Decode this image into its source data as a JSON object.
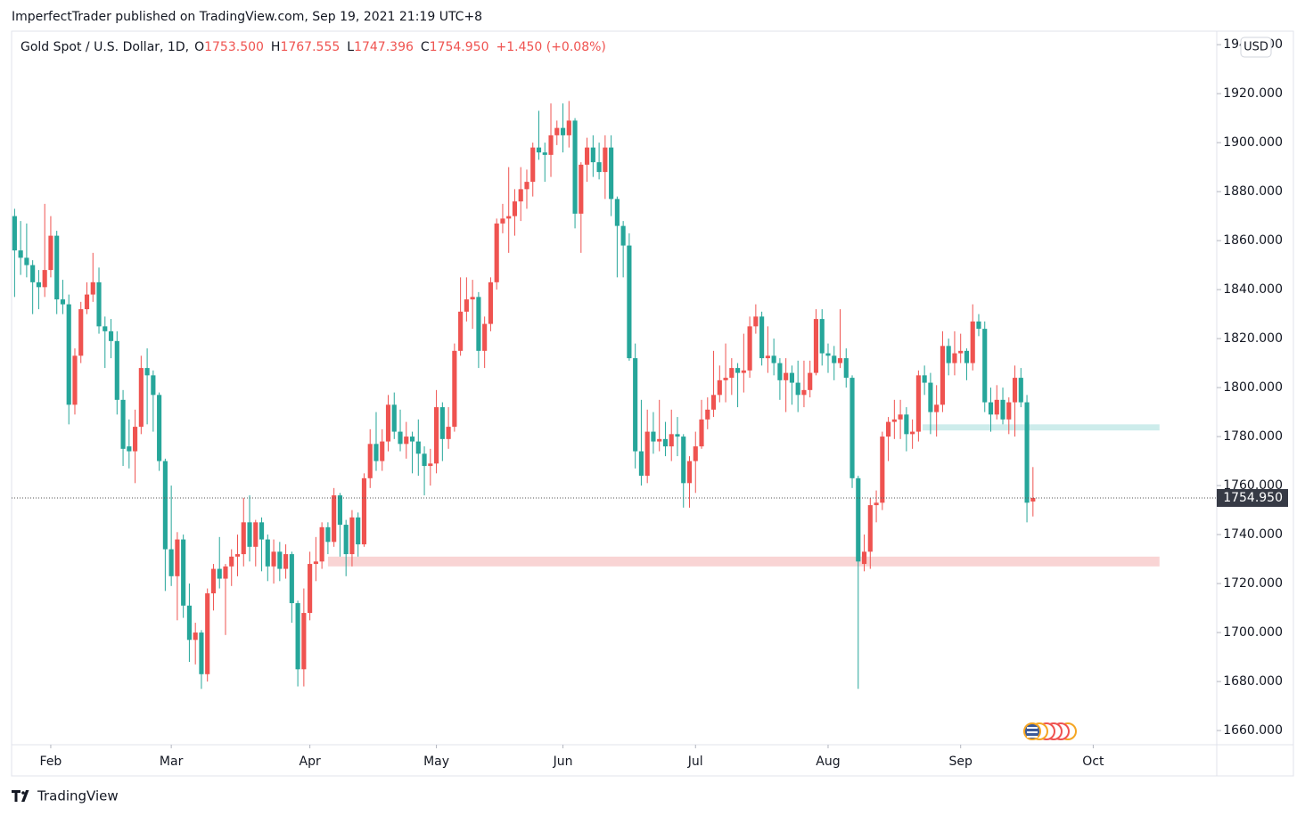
{
  "header": "ImperfectTrader published on TradingView.com, Sep 19, 2021 21:19 UTC+8",
  "footer": "TradingView",
  "chart_data": {
    "type": "candlestick",
    "legend": {
      "symbol": "Gold Spot / U.S. Dollar, 1D,",
      "ohlc": [
        {
          "key": "O",
          "value": "1753.500"
        },
        {
          "key": "H",
          "value": "1767.555"
        },
        {
          "key": "L",
          "value": "1747.396"
        },
        {
          "key": "C",
          "value": "1754.950"
        }
      ],
      "change": "+1.450 (+0.08%)"
    },
    "currency": "USD",
    "up_color": "#ef5350",
    "down_color": "#26a69a",
    "open": [
      1870,
      1856,
      1853,
      1850,
      1843,
      1841,
      1848,
      1862,
      1836,
      1834,
      1793,
      1813,
      1832,
      1838,
      1843,
      1825,
      1823,
      1819,
      1795,
      1776,
      1774,
      1784,
      1808,
      1805,
      1797,
      1770,
      1734,
      1723,
      1738,
      1711,
      1697,
      1700,
      1683,
      1716,
      1726,
      1722,
      1727,
      1731,
      1732,
      1745,
      1735,
      1745,
      1738,
      1727,
      1733,
      1726,
      1732,
      1712,
      1685,
      1708,
      1728,
      1729,
      1743,
      1737,
      1756,
      1744,
      1732,
      1747,
      1736,
      1763,
      1777,
      1770,
      1778,
      1793,
      1782,
      1777,
      1780,
      1778,
      1773,
      1768,
      1769,
      1792,
      1779,
      1784,
      1815,
      1831,
      1836,
      1837,
      1815,
      1826,
      1843,
      1867,
      1869,
      1870,
      1876,
      1881,
      1884,
      1898,
      1896,
      1895,
      1903,
      1906,
      1903,
      1909,
      1871,
      1891,
      1898,
      1892,
      1888,
      1898,
      1877,
      1866,
      1858,
      1812,
      1774,
      1764,
      1782,
      1778,
      1779,
      1776,
      1781,
      1780,
      1761,
      1770,
      1776,
      1787,
      1791,
      1797,
      1803,
      1804,
      1808,
      1806,
      1807,
      1825,
      1829,
      1812,
      1813,
      1810,
      1803,
      1806,
      1802,
      1797,
      1799,
      1806,
      1828,
      1814,
      1813,
      1810,
      1812,
      1804,
      1763,
      1728,
      1733,
      1752,
      1753,
      1780,
      1786,
      1787,
      1789,
      1781,
      1782,
      1805,
      1802,
      1790,
      1793,
      1817,
      1810,
      1814,
      1815,
      1810,
      1827,
      1824,
      1794,
      1789,
      1795,
      1787,
      1794,
      1804,
      1794,
      1753.5
    ],
    "high": [
      1873,
      1868,
      1867,
      1852,
      1848,
      1875,
      1870,
      1864,
      1844,
      1838,
      1816,
      1835,
      1843,
      1855,
      1849,
      1829,
      1828,
      1823,
      1799,
      1787,
      1791,
      1813,
      1816,
      1807,
      1798,
      1771,
      1760,
      1741,
      1740,
      1720,
      1704,
      1701,
      1718,
      1728,
      1739,
      1728,
      1734,
      1740,
      1755,
      1756,
      1746,
      1747,
      1740,
      1738,
      1737,
      1736,
      1733,
      1713,
      1718,
      1733,
      1739,
      1745,
      1745,
      1759,
      1757,
      1746,
      1750,
      1749,
      1765,
      1783,
      1790,
      1783,
      1797,
      1798,
      1791,
      1786,
      1782,
      1787,
      1776,
      1775,
      1799,
      1794,
      1792,
      1818,
      1845,
      1845,
      1844,
      1839,
      1829,
      1845,
      1869,
      1875,
      1890,
      1881,
      1890,
      1889,
      1900,
      1913,
      1900,
      1916,
      1909,
      1916,
      1917,
      1910,
      1892,
      1902,
      1903,
      1900,
      1903,
      1903,
      1878,
      1868,
      1863,
      1818,
      1795,
      1791,
      1790,
      1795,
      1786,
      1791,
      1788,
      1781,
      1772,
      1782,
      1795,
      1796,
      1815,
      1809,
      1818,
      1812,
      1810,
      1822,
      1829,
      1834,
      1831,
      1825,
      1820,
      1812,
      1812,
      1809,
      1811,
      1811,
      1811,
      1832,
      1832,
      1818,
      1817,
      1832,
      1816,
      1805,
      1764,
      1740,
      1755,
      1758,
      1782,
      1788,
      1795,
      1795,
      1792,
      1787,
      1807,
      1809,
      1806,
      1801,
      1823,
      1820,
      1823,
      1822,
      1816,
      1834,
      1830,
      1827,
      1800,
      1801,
      1800,
      1796,
      1809,
      1808,
      1797,
      1767.555
    ],
    "low": [
      1837,
      1846,
      1845,
      1830,
      1832,
      1837,
      1845,
      1830,
      1830,
      1785,
      1789,
      1810,
      1830,
      1835,
      1822,
      1808,
      1812,
      1789,
      1768,
      1767,
      1761,
      1781,
      1785,
      1782,
      1766,
      1717,
      1719,
      1705,
      1706,
      1688,
      1687,
      1677,
      1680,
      1709,
      1718,
      1699,
      1719,
      1723,
      1727,
      1729,
      1727,
      1725,
      1721,
      1720,
      1721,
      1722,
      1704,
      1678,
      1678,
      1705,
      1721,
      1726,
      1732,
      1735,
      1731,
      1723,
      1727,
      1731,
      1735,
      1759,
      1766,
      1766,
      1774,
      1779,
      1774,
      1771,
      1765,
      1764,
      1756,
      1760,
      1765,
      1770,
      1775,
      1782,
      1813,
      1827,
      1824,
      1808,
      1808,
      1823,
      1840,
      1863,
      1855,
      1862,
      1868,
      1873,
      1878,
      1893,
      1884,
      1886,
      1899,
      1896,
      1898,
      1865,
      1855,
      1884,
      1886,
      1885,
      1877,
      1870,
      1845,
      1845,
      1811,
      1767,
      1760,
      1761,
      1773,
      1774,
      1772,
      1770,
      1772,
      1751,
      1751,
      1757,
      1775,
      1783,
      1788,
      1794,
      1794,
      1797,
      1792,
      1798,
      1804,
      1822,
      1809,
      1806,
      1805,
      1795,
      1790,
      1793,
      1790,
      1792,
      1796,
      1805,
      1809,
      1806,
      1803,
      1808,
      1800,
      1759,
      1677,
      1725,
      1726,
      1745,
      1750,
      1770,
      1779,
      1779,
      1774,
      1775,
      1778,
      1797,
      1781,
      1780,
      1790,
      1805,
      1805,
      1810,
      1803,
      1807,
      1821,
      1790,
      1782,
      1787,
      1785,
      1781,
      1780,
      1792,
      1745,
      1747.396
    ],
    "close": [
      1856,
      1853,
      1850,
      1843,
      1841,
      1848,
      1862,
      1836,
      1834,
      1793,
      1813,
      1832,
      1838,
      1843,
      1825,
      1823,
      1819,
      1795,
      1775,
      1774,
      1784,
      1808,
      1805,
      1797,
      1770,
      1734,
      1723,
      1738,
      1711,
      1697,
      1700,
      1683,
      1716,
      1726,
      1722,
      1727,
      1731,
      1732,
      1745,
      1735,
      1745,
      1738,
      1727,
      1733,
      1726,
      1732,
      1712,
      1685,
      1708,
      1728,
      1729,
      1743,
      1737,
      1756,
      1744,
      1732,
      1747,
      1736,
      1763,
      1777,
      1770,
      1778,
      1793,
      1782,
      1777,
      1780,
      1778,
      1773,
      1768,
      1769,
      1792,
      1779,
      1784,
      1815,
      1831,
      1836,
      1837,
      1815,
      1826,
      1843,
      1867,
      1869,
      1870,
      1876,
      1881,
      1884,
      1898,
      1896,
      1895,
      1903,
      1906,
      1903,
      1909,
      1871,
      1891,
      1898,
      1892,
      1888,
      1898,
      1877,
      1866,
      1858,
      1812,
      1774,
      1764,
      1782,
      1778,
      1779,
      1776,
      1781,
      1780,
      1761,
      1770,
      1776,
      1787,
      1791,
      1797,
      1803,
      1804,
      1808,
      1806,
      1807,
      1825,
      1829,
      1812,
      1813,
      1810,
      1803,
      1806,
      1802,
      1797,
      1799,
      1806,
      1828,
      1814,
      1813,
      1810,
      1812,
      1804,
      1763,
      1729,
      1733,
      1752,
      1753,
      1780,
      1786,
      1787,
      1789,
      1781,
      1782,
      1805,
      1802,
      1790,
      1793,
      1817,
      1810,
      1814,
      1815,
      1810,
      1827,
      1824,
      1794,
      1789,
      1795,
      1787,
      1794,
      1804,
      1794,
      1753,
      1754.95
    ],
    "xlim": [
      -0.5,
      199.5
    ],
    "xticks": [
      {
        "value": 6,
        "label": "Feb"
      },
      {
        "value": 26,
        "label": "Mar"
      },
      {
        "value": 49,
        "label": "Apr"
      },
      {
        "value": 70,
        "label": "May"
      },
      {
        "value": 91,
        "label": "Jun"
      },
      {
        "value": 113,
        "label": "Jul"
      },
      {
        "value": 135,
        "label": "Aug"
      },
      {
        "value": 157,
        "label": "Sep"
      },
      {
        "value": 179,
        "label": "Oct"
      }
    ],
    "ylim": [
      1654.2,
      1945.5
    ],
    "yticks": [
      {
        "value": 1660,
        "label": "1660.000"
      },
      {
        "value": 1680,
        "label": "1680.000"
      },
      {
        "value": 1700,
        "label": "1700.000"
      },
      {
        "value": 1720,
        "label": "1720.000"
      },
      {
        "value": 1740,
        "label": "1740.000"
      },
      {
        "value": 1760,
        "label": "1760.000"
      },
      {
        "value": 1780,
        "label": "1780.000"
      },
      {
        "value": 1800,
        "label": "1800.000"
      },
      {
        "value": 1820,
        "label": "1820.000"
      },
      {
        "value": 1840,
        "label": "1840.000"
      },
      {
        "value": 1860,
        "label": "1860.000"
      },
      {
        "value": 1880,
        "label": "1880.000"
      },
      {
        "value": 1900,
        "label": "1900.000"
      },
      {
        "value": 1920,
        "label": "1920.000"
      },
      {
        "value": 1940,
        "label": "1940.000"
      }
    ],
    "zones": [
      {
        "x": [
          52,
          190
        ],
        "y": [
          1727,
          1731
        ],
        "color": "#f9d4d4"
      },
      {
        "x": [
          150.7,
          190
        ],
        "y": [
          1782.5,
          1785
        ],
        "color": "#cdeceb"
      }
    ],
    "last_price": 1754.95,
    "last_price_label": "1754.950"
  }
}
